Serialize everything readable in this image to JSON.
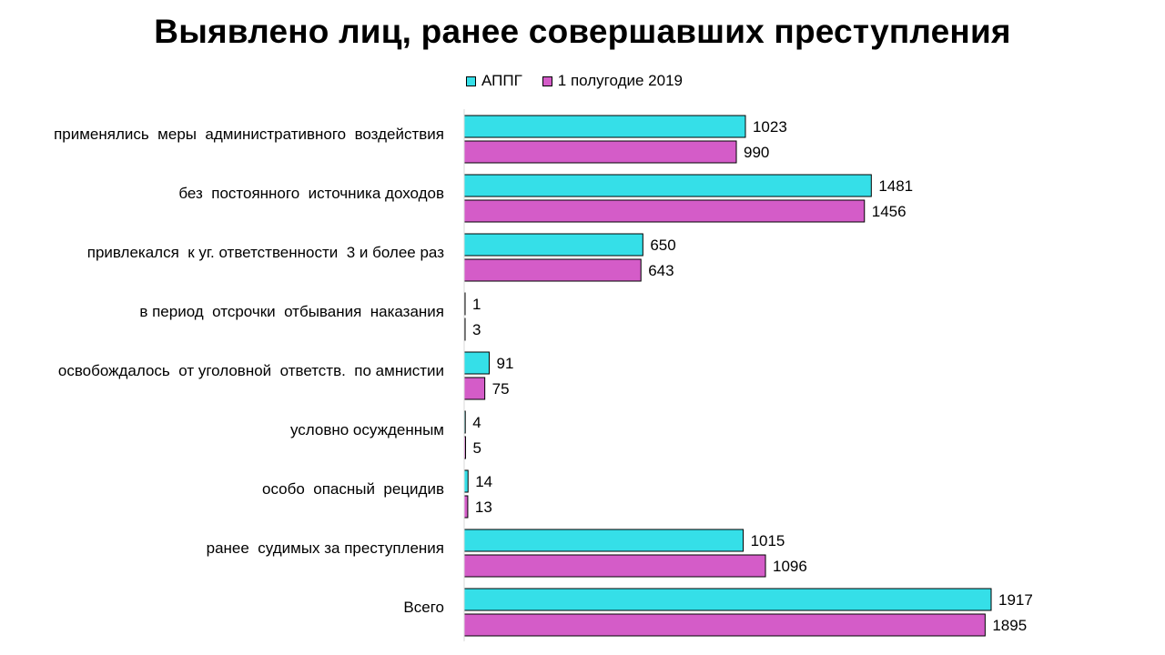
{
  "chart_data": {
    "type": "bar",
    "orientation": "horizontal",
    "title": "Выявлено лиц, ранее совершавших преступления",
    "xlabel": "",
    "ylabel": "",
    "xlim": [
      0,
      1917
    ],
    "grid": false,
    "legend_position": "top",
    "categories": [
      "применялись  меры  административного  воздействия",
      "без  постоянного  источника доходов",
      "привлекался  к уг. ответственности  3 и более раз",
      "в период  отсрочки  отбывания  наказания",
      "освобождалось  от уголовной  ответств.  по амнистии",
      "условно осужденным",
      "особо  опасный  рецидив",
      "ранее  судимых за преступления",
      "Всего"
    ],
    "series": [
      {
        "name": "АППГ",
        "color": "#35DFE8",
        "values": [
          1023,
          1481,
          650,
          1,
          91,
          4,
          14,
          1015,
          1917
        ]
      },
      {
        "name": "1 полугодие 2019",
        "color": "#D45CC8",
        "values": [
          990,
          1456,
          643,
          3,
          75,
          5,
          13,
          1096,
          1895
        ]
      }
    ]
  }
}
